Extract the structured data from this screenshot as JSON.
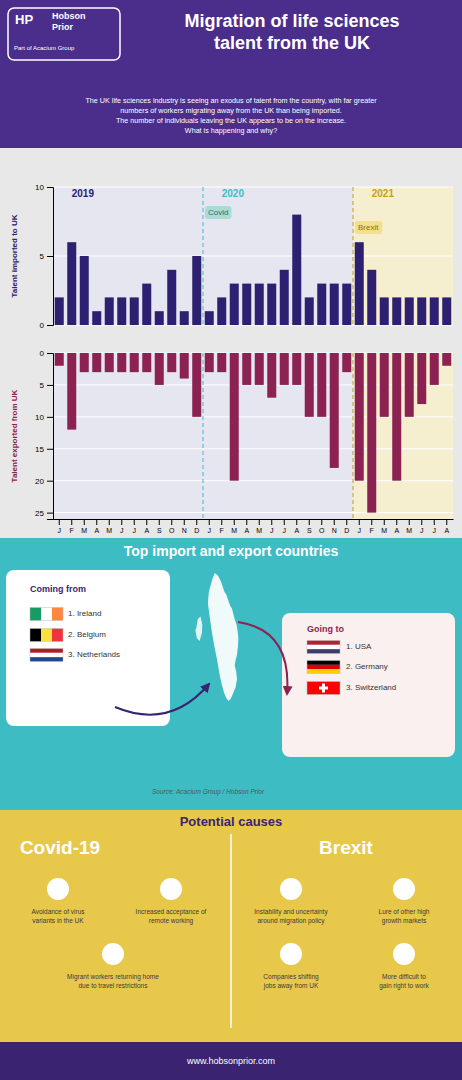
{
  "title": "Migration of life sciences\ntalent from the UK",
  "subtitle": "The UK life sciences industry is seeing an exodus of talent from the country, with far greater\nnumbers of workers migrating away from the UK than being imported.\nThe number of individuals leaving the UK appears to be on the increase.\nWhat is happening and why?",
  "logo": [
    "HP",
    "Hobson",
    "Prior",
    "Part of Acacium Group"
  ],
  "chart_data": [
    {
      "type": "bar",
      "ylabel": "Talent imported to UK",
      "categories": [
        "J",
        "F",
        "M",
        "A",
        "M",
        "J",
        "J",
        "A",
        "S",
        "O",
        "N",
        "D",
        "J",
        "F",
        "M",
        "A",
        "M",
        "J",
        "J",
        "A",
        "S",
        "O",
        "N",
        "D",
        "J",
        "F",
        "M",
        "A",
        "M",
        "J",
        "J",
        "A"
      ],
      "values": [
        2,
        6,
        5,
        1,
        2,
        2,
        2,
        3,
        1,
        4,
        1,
        5,
        1,
        2,
        3,
        3,
        3,
        3,
        4,
        8,
        2,
        3,
        3,
        3,
        6,
        4,
        2,
        2,
        2,
        2,
        2,
        2
      ],
      "color": "#2d2070",
      "ylim": [
        0,
        10
      ],
      "yticks": [
        0,
        5,
        10
      ],
      "grid": true,
      "tick_labels": "y",
      "annotations": {
        "periods": [
          "2019",
          "2020",
          "2021"
        ],
        "events": [
          "Covid",
          "Brexit"
        ]
      }
    },
    {
      "type": "bar",
      "ylabel": "Talent exported from UK",
      "categories": [
        "J",
        "F",
        "M",
        "A",
        "M",
        "J",
        "J",
        "A",
        "S",
        "O",
        "N",
        "D",
        "J",
        "F",
        "M",
        "A",
        "M",
        "J",
        "J",
        "A",
        "S",
        "O",
        "N",
        "D",
        "J",
        "F",
        "M",
        "A",
        "M",
        "J",
        "J",
        "A"
      ],
      "values": [
        2,
        12,
        3,
        3,
        3,
        3,
        3,
        3,
        5,
        3,
        4,
        10,
        3,
        3,
        20,
        5,
        5,
        7,
        5,
        5,
        10,
        10,
        18,
        3,
        20,
        25,
        10,
        20,
        10,
        8,
        5,
        2
      ],
      "color": "#8b2252",
      "ylim": [
        0,
        26
      ],
      "yticks": [
        0,
        5,
        10,
        15,
        20,
        25
      ],
      "grid": true
    }
  ],
  "countries": {
    "title": "Top import and export countries",
    "coming_from": {
      "title": "Coming from",
      "items": [
        "1. Ireland",
        "2. Belgium",
        "3. Netherlands"
      ]
    },
    "going_to": {
      "title": "Going to",
      "items": [
        "1. USA",
        "2. Germany",
        "3. Switzerland"
      ]
    },
    "source": "Source: Acacium Group / Hobson Prior"
  },
  "causes": {
    "title": "Potential causes",
    "groups": [
      {
        "title": "Covid-19",
        "items": [
          "Avoidance of virus\nvariants in the UK",
          "Increased acceptance of\nremote working",
          "Migrant workers returning home\ndue to travel restrictions"
        ]
      },
      {
        "title": "Brexit",
        "items": [
          "Instability and uncertainty\naround migration policy",
          "Lure of other high\ngrowth markets",
          "Companies shifting\njobs away from UK",
          "More difficult to\ngain right to work"
        ]
      }
    ]
  },
  "footer": "www.hobsonprior.com"
}
